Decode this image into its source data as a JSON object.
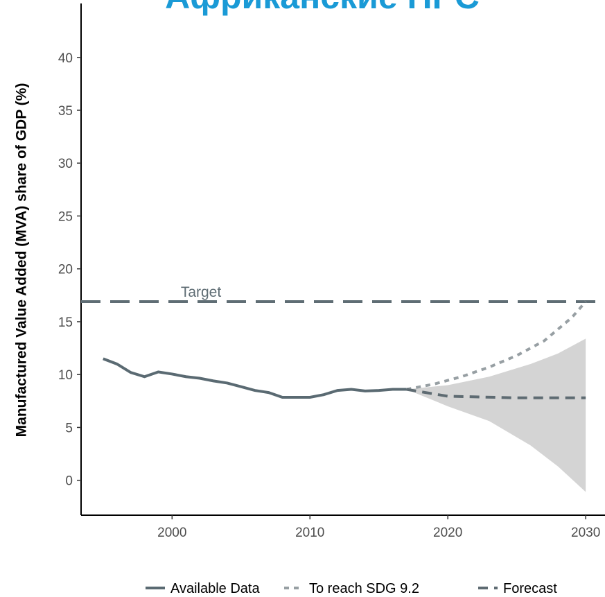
{
  "chart_data": {
    "type": "line",
    "title": "Африканские НРС",
    "y_label": "Manufactured Value Added (MVA) share of GDP (%)",
    "xlim": [
      1993.4,
      2031.4
    ],
    "ylim": [
      -3.3,
      45.1
    ],
    "xticks": [
      2000,
      2010,
      2020,
      2030
    ],
    "yticks": [
      0,
      5,
      10,
      15,
      20,
      25,
      30,
      35,
      40
    ],
    "target": {
      "value": 16.9,
      "label": "Target",
      "color": "#5f6d74"
    },
    "band": {
      "color": "#cfcfcf",
      "x": [
        2017,
        2020,
        2023,
        2026,
        2028,
        2030
      ],
      "upper": [
        8.6,
        9.0,
        9.8,
        11.0,
        12.0,
        13.4
      ],
      "lower": [
        8.6,
        7.0,
        5.6,
        3.3,
        1.3,
        -1.1
      ]
    },
    "series": [
      {
        "name": "Available Data",
        "color": "#5a6a72",
        "dash": "solid",
        "x": [
          1995,
          1996,
          1997,
          1998,
          1999,
          2000,
          2001,
          2002,
          2003,
          2004,
          2005,
          2006,
          2007,
          2008,
          2009,
          2010,
          2011,
          2012,
          2013,
          2014,
          2015,
          2016,
          2017
        ],
        "values": [
          11.5,
          11.0,
          10.2,
          9.8,
          10.25,
          10.05,
          9.8,
          9.65,
          9.4,
          9.2,
          8.85,
          8.5,
          8.3,
          7.85,
          7.85,
          7.85,
          8.1,
          8.5,
          8.6,
          8.45,
          8.5,
          8.6,
          8.6
        ]
      },
      {
        "name": "To reach SDG 9.2",
        "color": "#979fa3",
        "dash": "dotted",
        "x": [
          2017,
          2019,
          2021,
          2023,
          2025,
          2027,
          2029,
          2030
        ],
        "values": [
          8.6,
          9.1,
          9.8,
          10.7,
          11.8,
          13.2,
          15.4,
          16.9
        ]
      },
      {
        "name": "Forecast",
        "color": "#5e6b72",
        "dash": "dashed",
        "x": [
          2017,
          2020,
          2025,
          2030
        ],
        "values": [
          8.6,
          7.95,
          7.8,
          7.8
        ]
      }
    ]
  }
}
